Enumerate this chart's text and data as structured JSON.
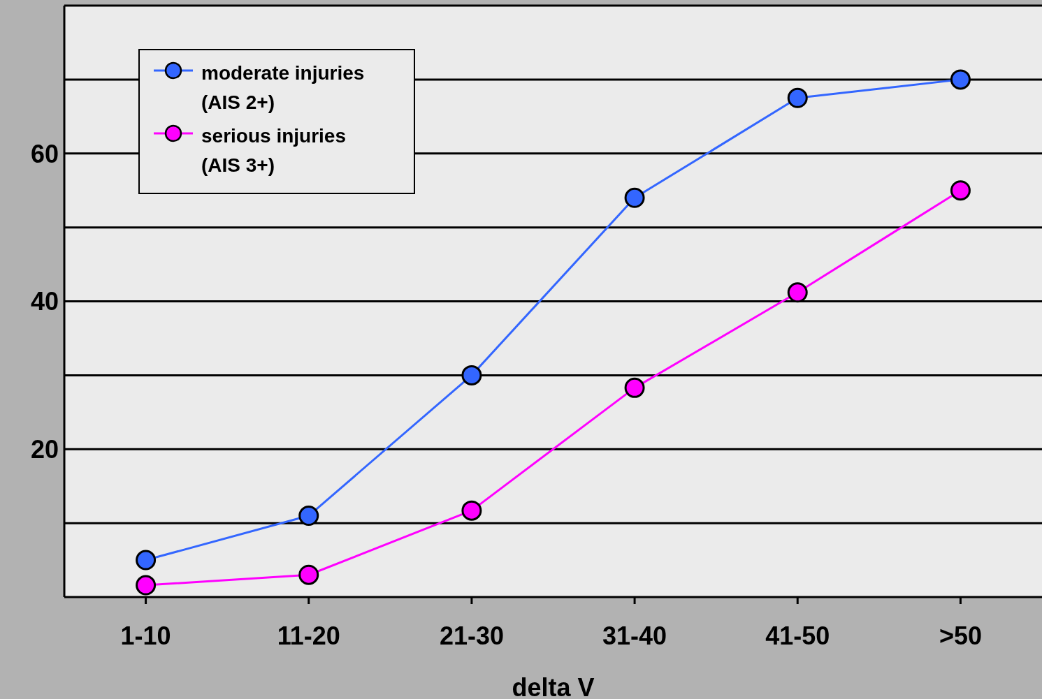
{
  "chart_data": {
    "type": "line",
    "xlabel": "delta V",
    "categories": [
      "1-10",
      "11-20",
      "21-30",
      "31-40",
      "41-50",
      ">50"
    ],
    "series": [
      {
        "name": "moderate injuries (AIS 2+)",
        "color": "#3366ff",
        "values": [
          5,
          11,
          30,
          54,
          67.5,
          70
        ]
      },
      {
        "name": "serious injuries (AIS 3+)",
        "color": "#ff00ff",
        "values": [
          1.6,
          3,
          11.7,
          28.3,
          41.2,
          55
        ]
      }
    ],
    "ylim": [
      0,
      80
    ],
    "yticks": [
      {
        "value": 10,
        "label": null
      },
      20,
      {
        "value": 30,
        "label": null
      },
      40,
      {
        "value": 50,
        "label": null
      },
      60,
      {
        "value": 70,
        "label": null
      }
    ],
    "grid": "y",
    "legend": "top left",
    "marker": "circle",
    "line_style": "solid"
  }
}
